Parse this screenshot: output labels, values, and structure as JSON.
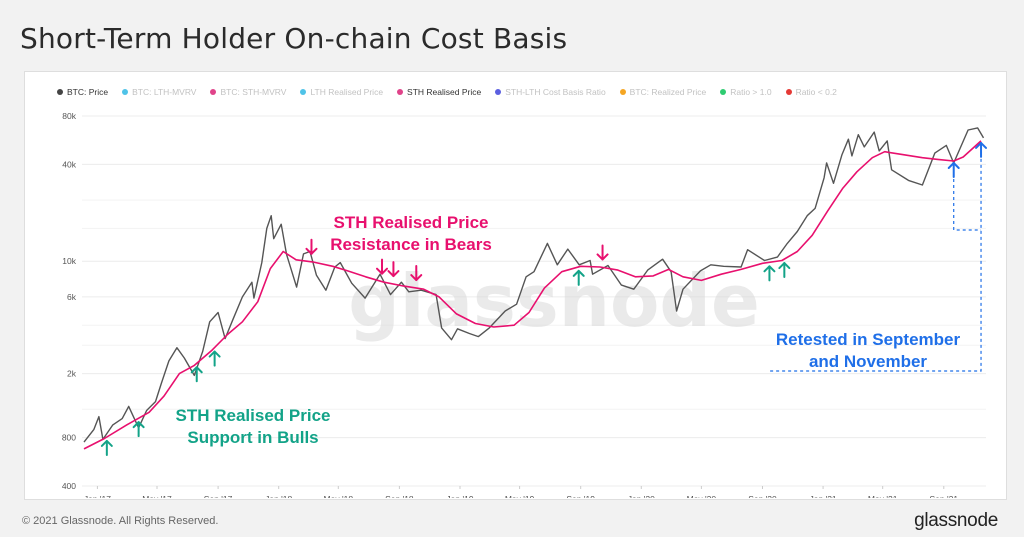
{
  "page": {
    "title": "Short-Term Holder On-chain Cost Basis",
    "copyright": "© 2021 Glassnode. All Rights Reserved.",
    "brand": "glassnode",
    "watermark": "glassnode"
  },
  "legend": [
    {
      "label": "BTC: Price",
      "color": "#444444",
      "active": true
    },
    {
      "label": "BTC: LTH-MVRV",
      "color": "#4fc3e8",
      "active": false
    },
    {
      "label": "BTC: STH-MVRV",
      "color": "#e0438a",
      "active": false
    },
    {
      "label": "LTH Realised Price",
      "color": "#4fc3e8",
      "active": false
    },
    {
      "label": "STH Realised Price",
      "color": "#e0438a",
      "active": true
    },
    {
      "label": "STH-LTH Cost Basis Ratio",
      "color": "#5b5fe0",
      "active": false
    },
    {
      "label": "BTC: Realized Price",
      "color": "#f5a623",
      "active": false
    },
    {
      "label": "Ratio > 1.0",
      "color": "#2ecc71",
      "active": false
    },
    {
      "label": "Ratio < 0.2",
      "color": "#e53935",
      "active": false
    }
  ],
  "chart_data": {
    "type": "line",
    "yscale": "log",
    "ylim": [
      400,
      80000
    ],
    "xlim": [
      "2016-12-01",
      "2021-11-25"
    ],
    "yticks": [
      {
        "value": 400,
        "label": "400"
      },
      {
        "value": 800,
        "label": "800"
      },
      {
        "value": 2000,
        "label": "2k"
      },
      {
        "value": 6000,
        "label": "6k"
      },
      {
        "value": 10000,
        "label": "10k"
      },
      {
        "value": 40000,
        "label": "40k"
      },
      {
        "value": 80000,
        "label": "80k"
      }
    ],
    "xticks": [
      {
        "date": "2017-01-01",
        "label": "Jan '17"
      },
      {
        "date": "2017-05-01",
        "label": "May '17"
      },
      {
        "date": "2017-09-01",
        "label": "Sep '17"
      },
      {
        "date": "2018-01-01",
        "label": "Jan '18"
      },
      {
        "date": "2018-05-01",
        "label": "May '18"
      },
      {
        "date": "2018-09-01",
        "label": "Sep '18"
      },
      {
        "date": "2019-01-01",
        "label": "Jan '19"
      },
      {
        "date": "2019-05-01",
        "label": "May '19"
      },
      {
        "date": "2019-09-01",
        "label": "Sep '19"
      },
      {
        "date": "2020-01-01",
        "label": "Jan '20"
      },
      {
        "date": "2020-05-01",
        "label": "May '20"
      },
      {
        "date": "2020-09-01",
        "label": "Sep '20"
      },
      {
        "date": "2021-01-01",
        "label": "Jan '21"
      },
      {
        "date": "2021-05-01",
        "label": "May '21"
      },
      {
        "date": "2021-09-01",
        "label": "Sep '21"
      }
    ],
    "series": [
      {
        "name": "BTC: Price",
        "color": "#555555",
        "points": [
          [
            "2016-12-05",
            750
          ],
          [
            "2016-12-25",
            900
          ],
          [
            "2017-01-04",
            1080
          ],
          [
            "2017-01-12",
            780
          ],
          [
            "2017-02-01",
            960
          ],
          [
            "2017-02-20",
            1050
          ],
          [
            "2017-03-05",
            1250
          ],
          [
            "2017-03-25",
            920
          ],
          [
            "2017-04-10",
            1180
          ],
          [
            "2017-04-28",
            1340
          ],
          [
            "2017-05-10",
            1750
          ],
          [
            "2017-05-25",
            2400
          ],
          [
            "2017-06-10",
            2900
          ],
          [
            "2017-06-25",
            2500
          ],
          [
            "2017-07-15",
            1950
          ],
          [
            "2017-08-01",
            2750
          ],
          [
            "2017-08-15",
            4200
          ],
          [
            "2017-09-01",
            4800
          ],
          [
            "2017-09-15",
            3300
          ],
          [
            "2017-10-01",
            4350
          ],
          [
            "2017-10-20",
            6000
          ],
          [
            "2017-11-08",
            7400
          ],
          [
            "2017-11-12",
            5900
          ],
          [
            "2017-11-28",
            9800
          ],
          [
            "2017-12-08",
            16000
          ],
          [
            "2017-12-17",
            19200
          ],
          [
            "2017-12-22",
            13800
          ],
          [
            "2018-01-06",
            17000
          ],
          [
            "2018-01-17",
            11000
          ],
          [
            "2018-02-06",
            6900
          ],
          [
            "2018-02-20",
            11100
          ],
          [
            "2018-03-05",
            11500
          ],
          [
            "2018-03-18",
            8200
          ],
          [
            "2018-04-06",
            6600
          ],
          [
            "2018-04-24",
            9200
          ],
          [
            "2018-05-05",
            9800
          ],
          [
            "2018-05-28",
            7300
          ],
          [
            "2018-06-24",
            5900
          ],
          [
            "2018-07-24",
            8300
          ],
          [
            "2018-08-14",
            6200
          ],
          [
            "2018-09-05",
            7400
          ],
          [
            "2018-09-20",
            6450
          ],
          [
            "2018-10-15",
            6600
          ],
          [
            "2018-11-14",
            6200
          ],
          [
            "2018-11-25",
            3850
          ],
          [
            "2018-12-15",
            3250
          ],
          [
            "2018-12-27",
            3800
          ],
          [
            "2019-01-20",
            3550
          ],
          [
            "2019-02-07",
            3400
          ],
          [
            "2019-03-01",
            3850
          ],
          [
            "2019-04-02",
            4900
          ],
          [
            "2019-04-25",
            5400
          ],
          [
            "2019-05-14",
            8000
          ],
          [
            "2019-05-30",
            8600
          ],
          [
            "2019-06-26",
            12900
          ],
          [
            "2019-07-16",
            9500
          ],
          [
            "2019-08-06",
            11900
          ],
          [
            "2019-08-29",
            9500
          ],
          [
            "2019-09-20",
            10100
          ],
          [
            "2019-09-25",
            8300
          ],
          [
            "2019-10-26",
            9400
          ],
          [
            "2019-11-22",
            7100
          ],
          [
            "2019-12-17",
            6700
          ],
          [
            "2020-01-14",
            8800
          ],
          [
            "2020-02-13",
            10300
          ],
          [
            "2020-03-01",
            8600
          ],
          [
            "2020-03-12",
            4900
          ],
          [
            "2020-03-25",
            6700
          ],
          [
            "2020-04-29",
            8700
          ],
          [
            "2020-05-20",
            9500
          ],
          [
            "2020-06-15",
            9300
          ],
          [
            "2020-07-20",
            9200
          ],
          [
            "2020-08-02",
            11800
          ],
          [
            "2020-09-05",
            10100
          ],
          [
            "2020-10-01",
            10600
          ],
          [
            "2020-10-21",
            12900
          ],
          [
            "2020-11-10",
            15300
          ],
          [
            "2020-11-30",
            19200
          ],
          [
            "2020-12-16",
            21300
          ],
          [
            "2021-01-03",
            33000
          ],
          [
            "2021-01-08",
            40900
          ],
          [
            "2021-01-22",
            30500
          ],
          [
            "2021-02-08",
            46000
          ],
          [
            "2021-02-21",
            57400
          ],
          [
            "2021-02-28",
            45200
          ],
          [
            "2021-03-13",
            61200
          ],
          [
            "2021-03-25",
            51400
          ],
          [
            "2021-04-14",
            63500
          ],
          [
            "2021-04-24",
            48500
          ],
          [
            "2021-05-10",
            56000
          ],
          [
            "2021-05-19",
            37000
          ],
          [
            "2021-06-22",
            31800
          ],
          [
            "2021-07-20",
            29800
          ],
          [
            "2021-08-14",
            47000
          ],
          [
            "2021-09-06",
            52500
          ],
          [
            "2021-09-21",
            40800
          ],
          [
            "2021-10-20",
            65500
          ],
          [
            "2021-11-08",
            67500
          ],
          [
            "2021-11-20",
            58500
          ]
        ]
      },
      {
        "name": "STH Realised Price",
        "color": "#e8106e",
        "points": [
          [
            "2016-12-05",
            680
          ],
          [
            "2017-01-15",
            790
          ],
          [
            "2017-03-01",
            960
          ],
          [
            "2017-04-15",
            1150
          ],
          [
            "2017-05-15",
            1450
          ],
          [
            "2017-06-15",
            2000
          ],
          [
            "2017-07-15",
            2250
          ],
          [
            "2017-08-20",
            2800
          ],
          [
            "2017-09-20",
            3500
          ],
          [
            "2017-10-20",
            4200
          ],
          [
            "2017-11-20",
            5600
          ],
          [
            "2017-12-15",
            9000
          ],
          [
            "2018-01-10",
            11500
          ],
          [
            "2018-02-05",
            10200
          ],
          [
            "2018-03-10",
            9900
          ],
          [
            "2018-04-20",
            9300
          ],
          [
            "2018-05-20",
            8700
          ],
          [
            "2018-06-25",
            8000
          ],
          [
            "2018-08-01",
            7400
          ],
          [
            "2018-09-10",
            7000
          ],
          [
            "2018-10-20",
            6700
          ],
          [
            "2018-11-20",
            6000
          ],
          [
            "2018-12-25",
            4700
          ],
          [
            "2019-02-01",
            4100
          ],
          [
            "2019-03-10",
            3900
          ],
          [
            "2019-04-20",
            4000
          ],
          [
            "2019-05-20",
            4800
          ],
          [
            "2019-06-20",
            6800
          ],
          [
            "2019-07-25",
            8600
          ],
          [
            "2019-09-01",
            9300
          ],
          [
            "2019-10-10",
            9200
          ],
          [
            "2019-11-15",
            8800
          ],
          [
            "2019-12-20",
            8000
          ],
          [
            "2020-01-25",
            8100
          ],
          [
            "2020-02-25",
            8900
          ],
          [
            "2020-03-25",
            8000
          ],
          [
            "2020-05-01",
            7600
          ],
          [
            "2020-06-10",
            8300
          ],
          [
            "2020-07-20",
            8900
          ],
          [
            "2020-09-01",
            9700
          ],
          [
            "2020-10-10",
            10100
          ],
          [
            "2020-11-10",
            11500
          ],
          [
            "2020-12-10",
            14500
          ],
          [
            "2021-01-10",
            20500
          ],
          [
            "2021-02-10",
            28500
          ],
          [
            "2021-03-10",
            36000
          ],
          [
            "2021-04-10",
            44000
          ],
          [
            "2021-05-05",
            48000
          ],
          [
            "2021-06-10",
            46000
          ],
          [
            "2021-07-20",
            44000
          ],
          [
            "2021-08-20",
            43000
          ],
          [
            "2021-09-21",
            42000
          ],
          [
            "2021-10-10",
            44500
          ],
          [
            "2021-11-15",
            56000
          ]
        ]
      }
    ],
    "annotations": [
      {
        "text": "STH Realised Price Resistance in Bears",
        "lines": [
          "STH Realised Price",
          "Resistance in Bears"
        ],
        "color": "#e8106e"
      },
      {
        "text": "STH Realised Price Support in Bulls",
        "lines": [
          "STH Realised Price",
          "Support in Bulls"
        ],
        "color": "#13a388"
      },
      {
        "text": "Retested in September and November",
        "lines": [
          "Retested in September",
          "and November"
        ],
        "color": "#1f6fe8"
      }
    ],
    "support_arrows": [
      "2017-01-20",
      "2017-03-25",
      "2017-07-20",
      "2017-08-25",
      "2019-08-28",
      "2020-09-15",
      "2020-10-15"
    ],
    "resistance_arrows": [
      "2018-03-08",
      "2018-07-28",
      "2018-08-20",
      "2018-10-05",
      "2019-10-15"
    ],
    "retest_arrows": [
      "2021-09-21",
      "2021-11-15"
    ],
    "grid": true
  }
}
